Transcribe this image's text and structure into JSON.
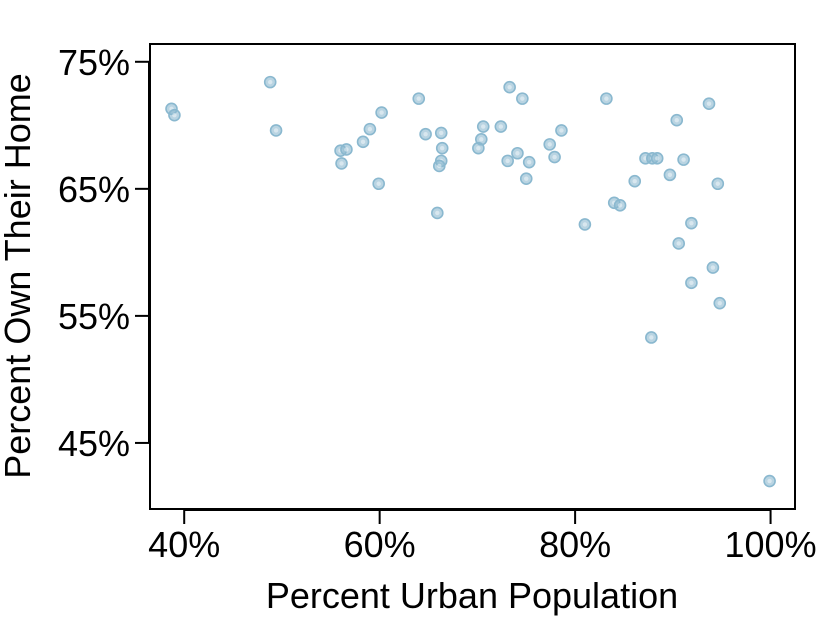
{
  "chart_data": {
    "type": "scatter",
    "xlabel": "Percent Urban Population",
    "ylabel": "Percent Own Their Home",
    "xlim": [
      36.5,
      102.5
    ],
    "ylim": [
      39.8,
      76.4
    ],
    "x_ticks": [
      40,
      60,
      80,
      100
    ],
    "x_tick_labels": [
      "40%",
      "60%",
      "80%",
      "100%"
    ],
    "y_ticks": [
      45,
      55,
      65,
      75
    ],
    "y_tick_labels": [
      "45%",
      "55%",
      "65%",
      "75%"
    ],
    "grid": false,
    "legend": "none",
    "marker_color": "#8ab8cf",
    "points": [
      {
        "x": 38.7,
        "y": 71.3
      },
      {
        "x": 39.0,
        "y": 70.8
      },
      {
        "x": 48.8,
        "y": 73.4
      },
      {
        "x": 49.4,
        "y": 69.6
      },
      {
        "x": 56.0,
        "y": 68.0
      },
      {
        "x": 56.6,
        "y": 68.1
      },
      {
        "x": 56.1,
        "y": 67.0
      },
      {
        "x": 58.3,
        "y": 68.7
      },
      {
        "x": 59.0,
        "y": 69.7
      },
      {
        "x": 59.9,
        "y": 65.4
      },
      {
        "x": 60.2,
        "y": 71.0
      },
      {
        "x": 64.0,
        "y": 72.1
      },
      {
        "x": 64.7,
        "y": 69.3
      },
      {
        "x": 66.3,
        "y": 69.4
      },
      {
        "x": 66.4,
        "y": 68.2
      },
      {
        "x": 66.3,
        "y": 67.2
      },
      {
        "x": 66.1,
        "y": 66.8
      },
      {
        "x": 65.9,
        "y": 63.1
      },
      {
        "x": 70.1,
        "y": 68.2
      },
      {
        "x": 70.4,
        "y": 68.9
      },
      {
        "x": 70.6,
        "y": 69.9
      },
      {
        "x": 72.4,
        "y": 69.9
      },
      {
        "x": 73.1,
        "y": 67.2
      },
      {
        "x": 73.3,
        "y": 73.0
      },
      {
        "x": 74.1,
        "y": 67.8
      },
      {
        "x": 74.6,
        "y": 72.1
      },
      {
        "x": 75.0,
        "y": 65.8
      },
      {
        "x": 75.3,
        "y": 67.1
      },
      {
        "x": 77.4,
        "y": 68.5
      },
      {
        "x": 77.9,
        "y": 67.5
      },
      {
        "x": 78.6,
        "y": 69.6
      },
      {
        "x": 81.0,
        "y": 62.2
      },
      {
        "x": 83.2,
        "y": 72.1
      },
      {
        "x": 84.0,
        "y": 63.9
      },
      {
        "x": 84.6,
        "y": 63.7
      },
      {
        "x": 86.1,
        "y": 65.6
      },
      {
        "x": 87.2,
        "y": 67.4
      },
      {
        "x": 87.8,
        "y": 53.3
      },
      {
        "x": 87.9,
        "y": 67.4
      },
      {
        "x": 88.4,
        "y": 67.4
      },
      {
        "x": 89.7,
        "y": 66.1
      },
      {
        "x": 90.4,
        "y": 70.4
      },
      {
        "x": 90.6,
        "y": 60.7
      },
      {
        "x": 91.1,
        "y": 67.3
      },
      {
        "x": 91.9,
        "y": 62.3
      },
      {
        "x": 91.9,
        "y": 57.6
      },
      {
        "x": 93.7,
        "y": 71.7
      },
      {
        "x": 94.1,
        "y": 58.8
      },
      {
        "x": 94.6,
        "y": 65.4
      },
      {
        "x": 94.8,
        "y": 56.0
      },
      {
        "x": 99.9,
        "y": 42.0
      }
    ]
  }
}
